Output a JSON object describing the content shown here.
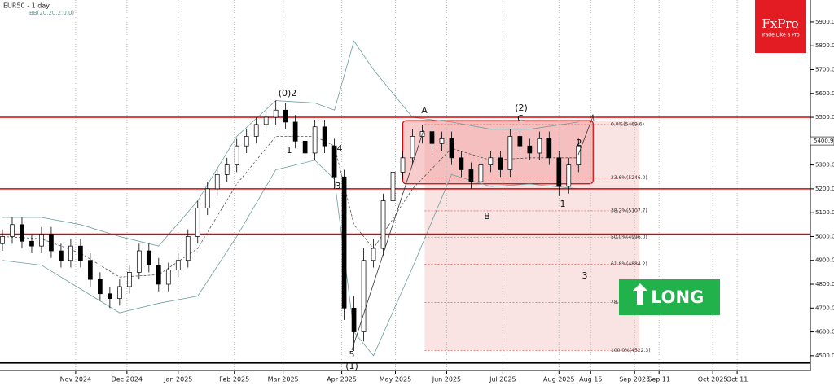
{
  "chart_data": {
    "type": "candlestick",
    "title": "EUR50 - 1 day",
    "indicator": "BB(20,20,2,0,0)",
    "xlim": [
      -31,
      301
    ],
    "ylim": [
      4438,
      5992
    ],
    "xticks": [
      {
        "value": 0,
        "label": "Nov 2024"
      },
      {
        "value": 21,
        "label": "Dec 2024"
      },
      {
        "value": 42,
        "label": "Jan 2025"
      },
      {
        "value": 65,
        "label": "Feb 2025"
      },
      {
        "value": 85,
        "label": "Mar 2025"
      },
      {
        "value": 109,
        "label": "Apr 2025"
      },
      {
        "value": 131,
        "label": "May 2025"
      },
      {
        "value": 152,
        "label": "Jun 2025"
      },
      {
        "value": 175,
        "label": "Jul 2025"
      },
      {
        "value": 198,
        "label": "Aug 2025"
      },
      {
        "value": 211,
        "label": "Aug 15"
      },
      {
        "value": 229,
        "label": "Sep 2025"
      },
      {
        "value": 239,
        "label": "Sep 11"
      },
      {
        "value": 261,
        "label": "Oct 2025"
      },
      {
        "value": 271,
        "label": "Oct 11"
      }
    ],
    "yticks": [
      {
        "value": 4500,
        "label": "4500.0"
      },
      {
        "value": 4600,
        "label": "4600.0"
      },
      {
        "value": 4700,
        "label": "4700.0"
      },
      {
        "value": 4800,
        "label": "4800.0"
      },
      {
        "value": 4900,
        "label": "4900.0"
      },
      {
        "value": 5000,
        "label": "5000.0"
      },
      {
        "value": 5100,
        "label": "5100.0"
      },
      {
        "value": 5200,
        "label": "5200.0"
      },
      {
        "value": 5300,
        "label": "5300.0"
      },
      {
        "value": 5400,
        "label": "5400.0"
      },
      {
        "value": 5500,
        "label": "5500.0"
      },
      {
        "value": 5600,
        "label": "5600.0"
      },
      {
        "value": 5700,
        "label": "5700.0"
      },
      {
        "value": 5800,
        "label": "5800.0"
      },
      {
        "value": 5900,
        "label": "5900.0"
      }
    ],
    "candles": {
      "x": [
        -30,
        -26,
        -22,
        -18,
        -14,
        -10,
        -6,
        -2,
        2,
        6,
        10,
        14,
        18,
        22,
        26,
        30,
        34,
        38,
        42,
        46,
        50,
        54,
        58,
        62,
        66,
        70,
        74,
        78,
        82,
        86,
        90,
        94,
        98,
        102,
        106,
        110,
        114,
        118,
        122,
        126,
        130,
        134,
        138,
        142,
        146,
        150,
        154,
        158,
        162,
        166,
        170,
        174,
        178,
        182,
        186,
        190,
        194,
        198,
        202,
        206
      ],
      "open": [
        4970,
        5000,
        5050,
        4980,
        4960,
        5010,
        4940,
        4900,
        4960,
        4900,
        4820,
        4760,
        4740,
        4790,
        4850,
        4940,
        4880,
        4800,
        4860,
        4900,
        5000,
        5120,
        5200,
        5260,
        5300,
        5380,
        5420,
        5470,
        5500,
        5530,
        5480,
        5400,
        5350,
        5460,
        5380,
        5250,
        4700,
        4600,
        4900,
        4950,
        5150,
        5270,
        5330,
        5420,
        5440,
        5390,
        5410,
        5330,
        5280,
        5230,
        5300,
        5330,
        5280,
        5420,
        5380,
        5350,
        5410,
        5330,
        5210,
        5300
      ],
      "high": [
        5030,
        5080,
        5080,
        5010,
        5040,
        5040,
        4970,
        4990,
        4990,
        4930,
        4850,
        4790,
        4820,
        4880,
        4970,
        4970,
        4910,
        4890,
        4930,
        5030,
        5150,
        5230,
        5290,
        5330,
        5410,
        5450,
        5500,
        5530,
        5570,
        5560,
        5510,
        5430,
        5490,
        5490,
        5410,
        5280,
        4750,
        4950,
        4990,
        5180,
        5300,
        5360,
        5450,
        5470,
        5470,
        5440,
        5440,
        5360,
        5310,
        5330,
        5360,
        5360,
        5450,
        5450,
        5410,
        5440,
        5440,
        5360,
        5330,
        5410
      ],
      "low": [
        4940,
        4970,
        4950,
        4930,
        4930,
        4910,
        4870,
        4870,
        4870,
        4790,
        4730,
        4700,
        4710,
        4760,
        4820,
        4850,
        4770,
        4770,
        4830,
        4870,
        4970,
        5090,
        5170,
        5230,
        5270,
        5350,
        5390,
        5440,
        5470,
        5450,
        5370,
        5320,
        5320,
        5350,
        5200,
        4650,
        4520,
        4560,
        4870,
        4920,
        5120,
        5240,
        5300,
        5390,
        5360,
        5360,
        5300,
        5250,
        5200,
        5200,
        5270,
        5250,
        5250,
        5350,
        5320,
        5320,
        5300,
        5170,
        5180,
        5270
      ],
      "close": [
        5000,
        5050,
        4980,
        4960,
        5010,
        4940,
        4900,
        4960,
        4900,
        4820,
        4760,
        4740,
        4790,
        4850,
        4940,
        4880,
        4800,
        4860,
        4900,
        5000,
        5120,
        5200,
        5260,
        5300,
        5380,
        5420,
        5470,
        5500,
        5530,
        5480,
        5400,
        5350,
        5460,
        5380,
        5250,
        4700,
        4600,
        4900,
        4950,
        5150,
        5270,
        5330,
        5420,
        5440,
        5390,
        5410,
        5330,
        5280,
        5230,
        5300,
        5330,
        5280,
        5420,
        5380,
        5350,
        5410,
        5330,
        5210,
        5300,
        5380
      ]
    },
    "bollinger": {
      "color": "#6f9e9e",
      "x": [
        -30,
        -14,
        2,
        18,
        34,
        50,
        66,
        82,
        98,
        106,
        114,
        122,
        138,
        154,
        170,
        186,
        206
      ],
      "upper": [
        5080,
        5080,
        5050,
        5000,
        4960,
        5150,
        5420,
        5570,
        5560,
        5530,
        5820,
        5700,
        5500,
        5480,
        5450,
        5450,
        5480
      ],
      "middle": [
        5000,
        4990,
        4930,
        4830,
        4840,
        4950,
        5220,
        5420,
        5420,
        5380,
        5050,
        4950,
        5200,
        5370,
        5320,
        5330,
        5330
      ],
      "lower": [
        4900,
        4880,
        4780,
        4680,
        4720,
        4750,
        5000,
        5280,
        5320,
        5240,
        4600,
        4500,
        4870,
        5260,
        5210,
        5220,
        5200
      ]
    },
    "levels": {
      "color": "#e00000",
      "values": [
        5500,
        5200,
        5010
      ]
    },
    "floor_line": 4470,
    "zone": {
      "x": [
        134,
        212
      ],
      "top": 5486,
      "bottom": 5221
    },
    "projection": {
      "x": [
        143,
        231
      ]
    },
    "fib_levels": [
      {
        "value": 5469.6,
        "label": "0.0%(5469.6)"
      },
      {
        "value": 5246.0,
        "label": "23.6%(5246.0)"
      },
      {
        "value": 5107.7,
        "label": "38.2%(5107.7)"
      },
      {
        "value": 4996.0,
        "label": "50.0%(4996.0)"
      },
      {
        "value": 4884.2,
        "label": "61.8%(4884.2)"
      },
      {
        "value": 4722.9,
        "label": "78.6%(4722.9)"
      },
      {
        "value": 4522.3,
        "label": "100.0%(4522.3)"
      }
    ],
    "current_price": 5400.9,
    "annotations": [
      "(0)2",
      "1",
      "4",
      "3",
      "5",
      "(1)",
      "A",
      "B",
      "(2)",
      "C",
      "1",
      "2",
      "3"
    ],
    "signal": "LONG",
    "logo": {
      "name": "FxPro",
      "tagline": "Trade Like a Pro"
    }
  }
}
